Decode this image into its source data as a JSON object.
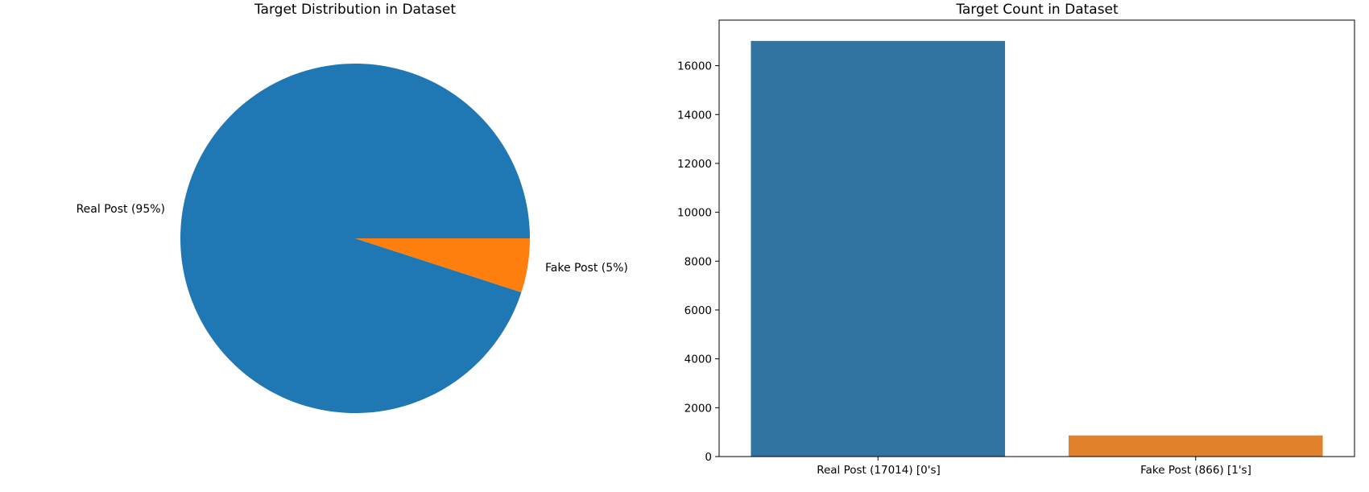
{
  "chart_data": [
    {
      "type": "pie",
      "title": "Target Distribution in Dataset",
      "labels": [
        "Real Post (95%)",
        "Fake Post (5%)"
      ],
      "values": [
        95,
        5
      ],
      "colors": [
        "#1f77b4",
        "#ff7f0e"
      ]
    },
    {
      "type": "bar",
      "title": "Target Count in Dataset",
      "categories": [
        "Real Post (17014) [0's]",
        "Fake Post (866) [1's]"
      ],
      "values": [
        17014,
        866
      ],
      "colors": [
        "#3274a1",
        "#e1812c"
      ],
      "xlabel": "",
      "ylabel": "",
      "ylim": [
        0,
        17865
      ],
      "yticks": [
        0,
        2000,
        4000,
        6000,
        8000,
        10000,
        12000,
        14000,
        16000
      ]
    }
  ]
}
